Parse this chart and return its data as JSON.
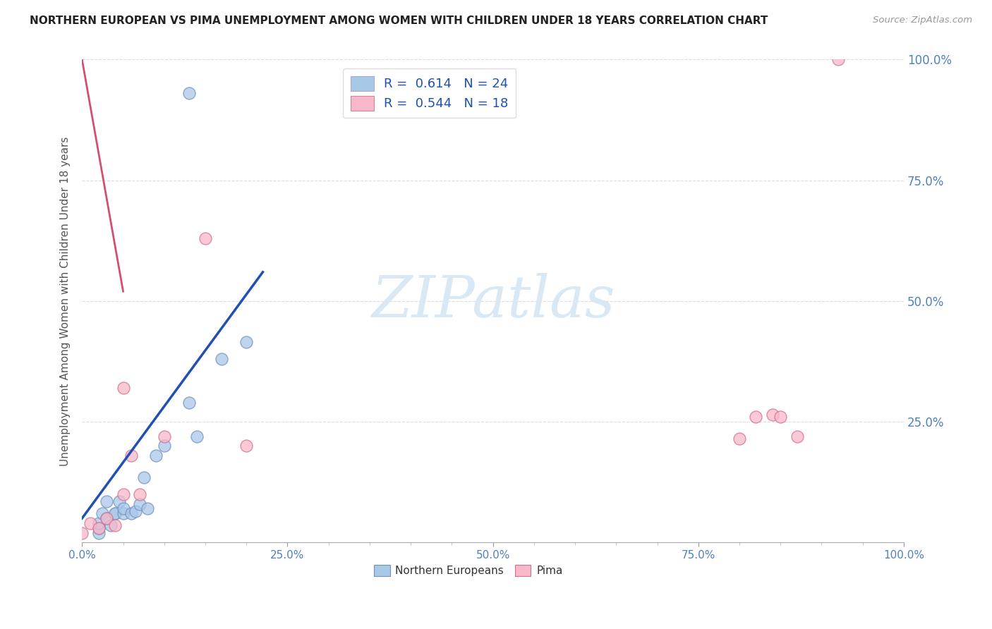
{
  "title": "NORTHERN EUROPEAN VS PIMA UNEMPLOYMENT AMONG WOMEN WITH CHILDREN UNDER 18 YEARS CORRELATION CHART",
  "source": "Source: ZipAtlas.com",
  "ylabel": "Unemployment Among Women with Children Under 18 years",
  "xlim": [
    0,
    100
  ],
  "ylim": [
    0,
    100
  ],
  "xticks": [
    0,
    25,
    50,
    75,
    100
  ],
  "xticklabels": [
    "0.0%",
    "25.0%",
    "50.0%",
    "75.0%",
    "100.0%"
  ],
  "yticks_right": [
    0,
    25,
    50,
    75,
    100
  ],
  "yticklabels_right": [
    "",
    "25.0%",
    "50.0%",
    "75.0%",
    "100.0%"
  ],
  "blue_R": 0.614,
  "blue_N": 24,
  "pink_R": 0.544,
  "pink_N": 18,
  "blue_color": "#a8c8e8",
  "pink_color": "#f8b8c8",
  "blue_edge_color": "#7090c0",
  "pink_edge_color": "#d07090",
  "blue_line_color": "#2050b0",
  "pink_line_color": "#d05070",
  "tick_label_color": "#5080c0",
  "watermark_color": "#d8e8f4",
  "legend_label_blue": "Northern Europeans",
  "legend_label_pink": "Pima",
  "blue_scatter_x": [
    2,
    2,
    2,
    2.5,
    3,
    3,
    3.5,
    4,
    4,
    4.5,
    5,
    5,
    6,
    6.5,
    7,
    7.5,
    8,
    9,
    10,
    13,
    14,
    17,
    20,
    13
  ],
  "blue_scatter_y": [
    2,
    3,
    4,
    6,
    5,
    8.5,
    3.5,
    6,
    6,
    8.5,
    6,
    7,
    6,
    6.5,
    8,
    13.5,
    7,
    18,
    20,
    29,
    22,
    38,
    41.5,
    93
  ],
  "pink_scatter_x": [
    0,
    1,
    2,
    3,
    4,
    5,
    5,
    6,
    7,
    10,
    15,
    20,
    80,
    82,
    84,
    85,
    87,
    92
  ],
  "pink_scatter_y": [
    2,
    4,
    3,
    5,
    3.5,
    10,
    32,
    18,
    10,
    22,
    63,
    20,
    21.5,
    26,
    26.5,
    26,
    22,
    100
  ],
  "blue_line": [
    [
      0,
      22
    ],
    [
      5,
      56
    ]
  ],
  "pink_line": [
    [
      0,
      5
    ],
    [
      100,
      52
    ]
  ],
  "diag_line": [
    [
      0,
      0
    ],
    [
      100,
      100
    ]
  ]
}
